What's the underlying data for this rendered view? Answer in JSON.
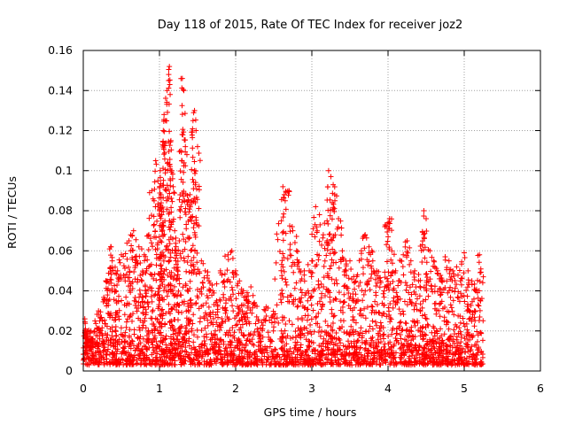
{
  "chart_data": {
    "type": "scatter",
    "title": "Day 118 of 2015, Rate Of TEC Index for receiver joz2",
    "xlabel": "GPS time / hours",
    "ylabel": "ROTI / TECUs",
    "xlim": [
      0,
      6
    ],
    "ylim": [
      0,
      0.16
    ],
    "x_ticks": [
      0,
      1,
      2,
      3,
      4,
      5,
      6
    ],
    "y_ticks": [
      0,
      0.02,
      0.04,
      0.06,
      0.08,
      0.1,
      0.12,
      0.14,
      0.16
    ],
    "x_tick_labels": [
      "0",
      "1",
      "2",
      "3",
      "4",
      "5",
      "6"
    ],
    "y_tick_labels": [
      "0",
      "0.02",
      "0.04",
      "0.06",
      "0.08",
      "0.1",
      "0.12",
      "0.14",
      "0.16"
    ],
    "grid": true,
    "marker": "+",
    "marker_color": "#ff0000",
    "series": [
      {
        "name": "ROTI",
        "x": [
          0.02,
          0.03,
          0.05,
          0.1,
          0.15,
          0.2,
          0.25,
          0.3,
          0.33,
          0.36,
          0.38,
          0.42,
          0.45,
          0.5,
          0.55,
          0.6,
          0.62,
          0.66,
          0.7,
          0.73,
          0.77,
          0.8,
          0.83,
          0.86,
          0.9,
          0.93,
          0.95,
          0.98,
          1.0,
          1.01,
          1.02,
          1.03,
          1.04,
          1.05,
          1.06,
          1.08,
          1.1,
          1.12,
          1.13,
          1.14,
          1.15,
          1.16,
          1.18,
          1.2,
          1.22,
          1.24,
          1.26,
          1.28,
          1.3,
          1.32,
          1.34,
          1.36,
          1.38,
          1.4,
          1.42,
          1.44,
          1.46,
          1.48,
          1.5,
          1.55,
          1.6,
          1.65,
          1.7,
          1.75,
          1.8,
          1.85,
          1.9,
          1.95,
          2.0,
          2.05,
          2.1,
          2.15,
          2.2,
          2.3,
          2.4,
          2.5,
          2.6,
          2.62,
          2.65,
          2.7,
          2.75,
          2.8,
          2.85,
          2.9,
          2.95,
          3.0,
          3.05,
          3.1,
          3.15,
          3.2,
          3.22,
          3.25,
          3.28,
          3.3,
          3.35,
          3.4,
          3.45,
          3.5,
          3.55,
          3.6,
          3.65,
          3.7,
          3.75,
          3.8,
          3.85,
          3.9,
          3.95,
          4.0,
          4.02,
          4.05,
          4.1,
          4.15,
          4.2,
          4.25,
          4.3,
          4.35,
          4.4,
          4.45,
          4.47,
          4.5,
          4.55,
          4.6,
          4.65,
          4.7,
          4.75,
          4.8,
          4.85,
          4.9,
          4.95,
          5.0,
          5.05,
          5.1,
          5.15,
          5.2,
          5.25
        ],
        "y": [
          0.026,
          0.018,
          0.012,
          0.02,
          0.015,
          0.03,
          0.025,
          0.045,
          0.035,
          0.062,
          0.055,
          0.04,
          0.05,
          0.058,
          0.045,
          0.065,
          0.06,
          0.07,
          0.055,
          0.062,
          0.045,
          0.058,
          0.05,
          0.068,
          0.09,
          0.085,
          0.105,
          0.095,
          0.08,
          0.1,
          0.088,
          0.078,
          0.07,
          0.12,
          0.128,
          0.125,
          0.14,
          0.145,
          0.152,
          0.138,
          0.115,
          0.1,
          0.092,
          0.07,
          0.06,
          0.048,
          0.065,
          0.11,
          0.146,
          0.14,
          0.112,
          0.108,
          0.085,
          0.088,
          0.075,
          0.125,
          0.13,
          0.12,
          0.112,
          0.055,
          0.05,
          0.045,
          0.04,
          0.035,
          0.05,
          0.045,
          0.058,
          0.06,
          0.05,
          0.045,
          0.04,
          0.035,
          0.042,
          0.025,
          0.032,
          0.022,
          0.075,
          0.092,
          0.085,
          0.09,
          0.07,
          0.06,
          0.045,
          0.05,
          0.04,
          0.055,
          0.082,
          0.078,
          0.068,
          0.075,
          0.1,
          0.097,
          0.093,
          0.088,
          0.076,
          0.06,
          0.05,
          0.055,
          0.035,
          0.048,
          0.06,
          0.068,
          0.062,
          0.055,
          0.05,
          0.045,
          0.04,
          0.074,
          0.076,
          0.06,
          0.05,
          0.045,
          0.058,
          0.065,
          0.055,
          0.05,
          0.045,
          0.063,
          0.08,
          0.076,
          0.06,
          0.055,
          0.05,
          0.045,
          0.057,
          0.055,
          0.05,
          0.052,
          0.045,
          0.059,
          0.05,
          0.045,
          0.04,
          0.058,
          0.047
        ],
        "baseline_band": [
          0.0,
          0.02
        ]
      }
    ]
  }
}
